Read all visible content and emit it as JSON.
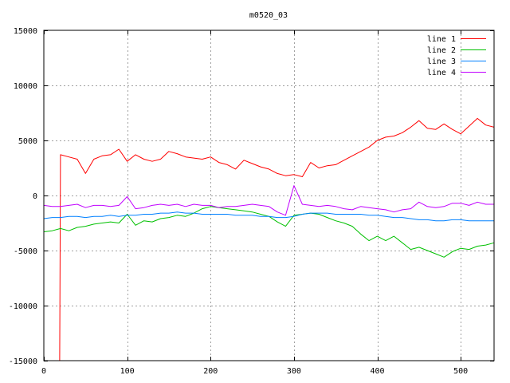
{
  "chart_data": {
    "type": "line",
    "title": "m0520_03",
    "xlabel": "",
    "ylabel": "",
    "xlim": [
      0,
      540
    ],
    "ylim": [
      -15000,
      15000
    ],
    "xticks": [
      0,
      100,
      200,
      300,
      400,
      500
    ],
    "yticks": [
      -15000,
      -10000,
      -5000,
      0,
      5000,
      10000,
      15000
    ],
    "grid": true,
    "legend_position": "top-right",
    "x_step": 10,
    "series": [
      {
        "name": "line 1",
        "color": "#ff0000",
        "start": [
          [
            19,
            -15000
          ],
          [
            20,
            3700
          ]
        ],
        "x_start": 20,
        "values": [
          3700,
          3500,
          3300,
          2000,
          3300,
          3600,
          3700,
          4200,
          3100,
          3700,
          3300,
          3100,
          3300,
          4000,
          3800,
          3500,
          3400,
          3300,
          3500,
          3000,
          2800,
          2400,
          3200,
          2900,
          2600,
          2400,
          2000,
          1800,
          1900,
          1700,
          3000,
          2500,
          2700,
          2800,
          3200,
          3600,
          4000,
          4400,
          5000,
          5300,
          5400,
          5700,
          6200,
          6800,
          6100,
          6000,
          6500,
          6000,
          5600,
          6300,
          7000,
          6400,
          6200
        ]
      },
      {
        "name": "line 2",
        "color": "#00c000",
        "x_start": 0,
        "values": [
          -3300,
          -3200,
          -3000,
          -3200,
          -2900,
          -2800,
          -2600,
          -2500,
          -2400,
          -2500,
          -1700,
          -2700,
          -2300,
          -2400,
          -2100,
          -2000,
          -1800,
          -1900,
          -1600,
          -1200,
          -1000,
          -1100,
          -1200,
          -1300,
          -1400,
          -1500,
          -1700,
          -1900,
          -2400,
          -2800,
          -1800,
          -1700,
          -1600,
          -1700,
          -2000,
          -2300,
          -2500,
          -2800,
          -3500,
          -4100,
          -3700,
          -4100,
          -3700,
          -4300,
          -4900,
          -4700,
          -5000,
          -5300,
          -5600,
          -5100,
          -4800,
          -4900,
          -4600,
          -4500,
          -4300
        ]
      },
      {
        "name": "line 3",
        "color": "#0080ff",
        "x_start": 0,
        "values": [
          -2100,
          -2000,
          -2000,
          -1900,
          -1900,
          -2000,
          -1900,
          -1900,
          -1800,
          -1900,
          -1800,
          -1800,
          -1700,
          -1700,
          -1600,
          -1600,
          -1500,
          -1600,
          -1600,
          -1700,
          -1700,
          -1700,
          -1700,
          -1800,
          -1800,
          -1800,
          -1900,
          -1900,
          -2000,
          -2000,
          -1900,
          -1700,
          -1600,
          -1600,
          -1600,
          -1700,
          -1700,
          -1700,
          -1700,
          -1800,
          -1800,
          -1900,
          -2000,
          -2000,
          -2100,
          -2200,
          -2200,
          -2300,
          -2300,
          -2200,
          -2200,
          -2300,
          -2300,
          -2300,
          -2300
        ]
      },
      {
        "name": "line 4",
        "color": "#c000ff",
        "x_start": 0,
        "values": [
          -900,
          -1000,
          -1000,
          -900,
          -800,
          -1100,
          -900,
          -900,
          -1000,
          -900,
          -100,
          -1200,
          -1100,
          -900,
          -800,
          -900,
          -800,
          -1000,
          -800,
          -900,
          -900,
          -1100,
          -1000,
          -1000,
          -900,
          -800,
          -900,
          -1000,
          -1500,
          -1800,
          900,
          -800,
          -900,
          -1000,
          -900,
          -1000,
          -1200,
          -1300,
          -1000,
          -1100,
          -1200,
          -1300,
          -1500,
          -1300,
          -1200,
          -600,
          -1000,
          -1100,
          -1000,
          -700,
          -700,
          -900,
          -600,
          -800,
          -800
        ]
      }
    ]
  }
}
